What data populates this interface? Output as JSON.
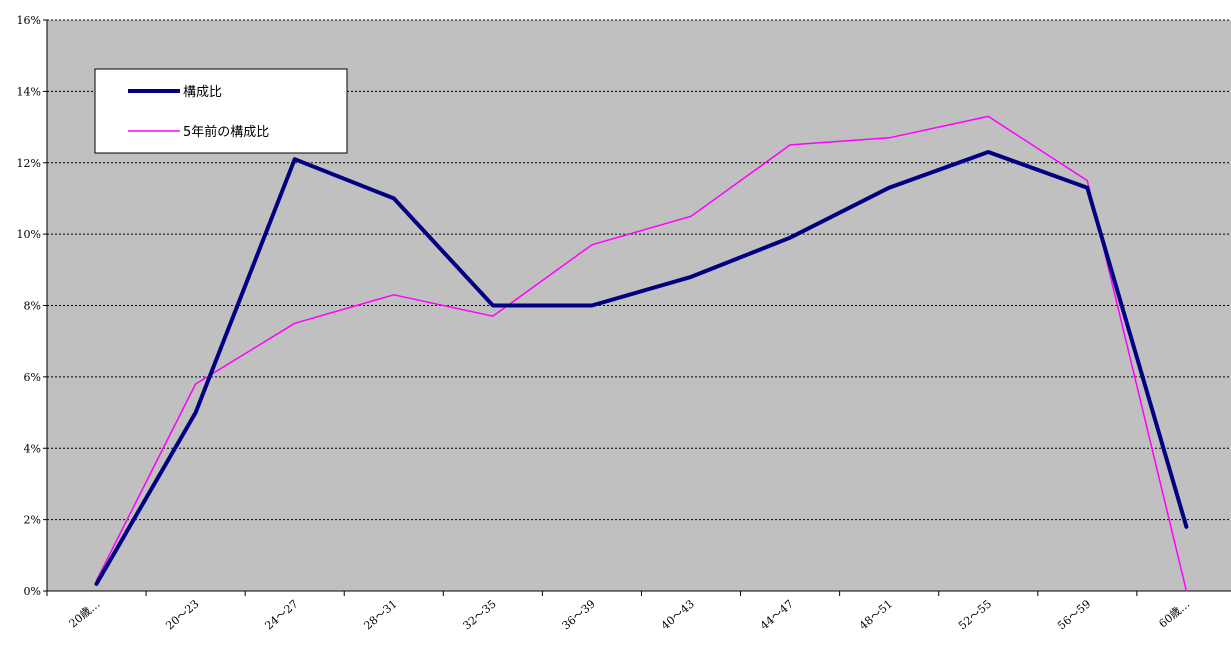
{
  "chart_data": {
    "type": "line",
    "title": "",
    "xlabel": "",
    "ylabel": "",
    "categories": [
      "20歳…",
      "20～23",
      "24～27",
      "28～31",
      "32～35",
      "36～39",
      "40～43",
      "44～47",
      "48～51",
      "52～55",
      "56～59",
      "60歳…"
    ],
    "ylim": [
      0,
      16
    ],
    "yticks": [
      0,
      2,
      4,
      6,
      8,
      10,
      12,
      14,
      16
    ],
    "ytick_labels": [
      "0%",
      "2%",
      "4%",
      "6%",
      "8%",
      "10%",
      "12%",
      "14%",
      "16%"
    ],
    "grid": "horizontal-dashed",
    "legend_position": "top-left",
    "series": [
      {
        "name": "構成比",
        "color": "#000080",
        "values": [
          0.2,
          5.0,
          12.1,
          11.0,
          8.0,
          8.0,
          8.8,
          9.9,
          11.3,
          12.3,
          11.3,
          1.8
        ]
      },
      {
        "name": "5年前の構成比",
        "color": "#ff00ff",
        "values": [
          0.3,
          5.8,
          7.5,
          8.3,
          7.7,
          9.7,
          10.5,
          12.5,
          12.7,
          13.3,
          11.5,
          0.0
        ]
      }
    ],
    "colors": {
      "plot_background": "#c0c0c0",
      "grid": "#000000",
      "axis": "#000000"
    }
  }
}
